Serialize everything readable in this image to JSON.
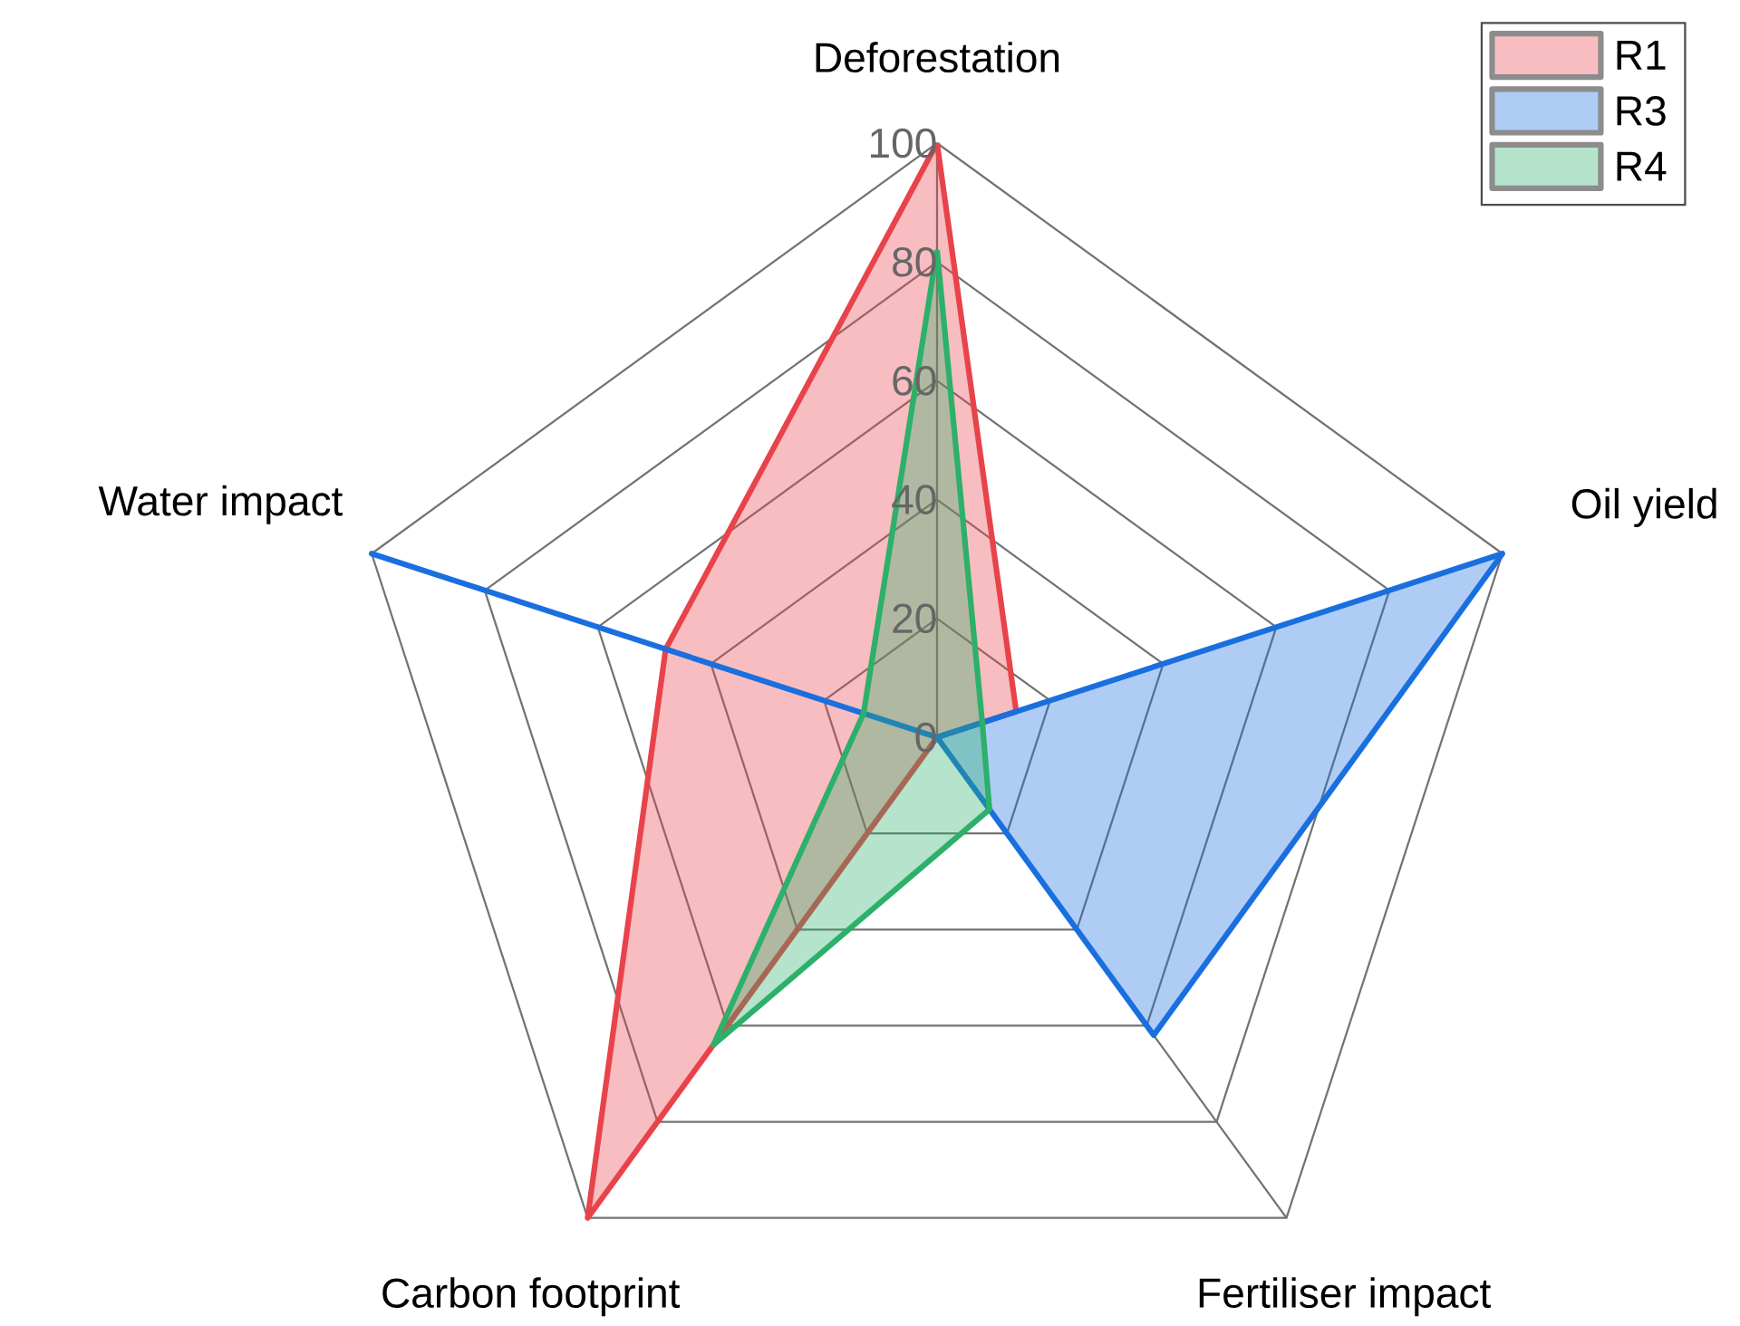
{
  "chart_data": {
    "type": "radar",
    "categories": [
      "Deforestation",
      "Oil yield",
      "Fertiliser impact",
      "Carbon footprint",
      "Water impact"
    ],
    "series": [
      {
        "name": "R1",
        "color": "#e8434b",
        "values": [
          100,
          14,
          0,
          100,
          48
        ]
      },
      {
        "name": "R3",
        "color": "#1a6fdf",
        "values": [
          0,
          100,
          62,
          0,
          100
        ]
      },
      {
        "name": "R4",
        "color": "#2cb06a",
        "values": [
          82,
          8,
          15,
          64,
          13
        ]
      }
    ],
    "ylim": [
      0,
      100
    ],
    "yticks": [
      0,
      20,
      40,
      60,
      80,
      100
    ],
    "grid": true,
    "legend": "top right"
  }
}
